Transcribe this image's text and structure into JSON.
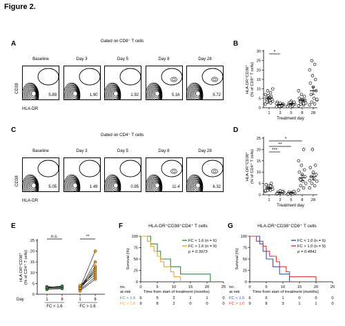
{
  "figure_title": "Figure 2.",
  "panel_letters": {
    "A": "A",
    "B": "B",
    "C": "C",
    "D": "D",
    "E": "E",
    "F": "F",
    "G": "G"
  },
  "panelA": {
    "header": "Gated on CD8⁺ T cells",
    "x_label": "HLA-DR",
    "y_label": "CD38",
    "columns": [
      "Baseline",
      "Day 3",
      "Day 5",
      "Day 8",
      "Day 28"
    ],
    "percentages": [
      "5.89",
      "1.90",
      "1.92",
      "5.16",
      "5.72"
    ]
  },
  "panelC": {
    "header": "Gated on CD4⁺ T cells",
    "x_label": "HLA-DR",
    "y_label": "CD38",
    "columns": [
      "Baseline",
      "Day 3",
      "Day 5",
      "Day 8",
      "Day 28"
    ],
    "percentages": [
      "5.05",
      "1.49",
      "0.95",
      "11.4",
      "6.32"
    ]
  },
  "chart_data": [
    {
      "panel": "B",
      "type": "scatter",
      "ylabel_line1": "HLA-DR⁺CD38⁺",
      "ylabel_line2": "(% of CD8⁺ T cells)",
      "xlabel": "Treatment day",
      "categories": [
        "1",
        "3",
        "5",
        "8",
        "28"
      ],
      "yticks": [
        0,
        5,
        10,
        15,
        20,
        25,
        30
      ],
      "ylim": [
        0,
        30
      ],
      "significance": [
        {
          "from": "1",
          "to": "3",
          "label": "*"
        }
      ],
      "points": [
        [
          2,
          2.5,
          3,
          3.5,
          4,
          4,
          4.5,
          5,
          5,
          6,
          6.5,
          7,
          8,
          9,
          10,
          5.5,
          3
        ],
        [
          0.5,
          1,
          1,
          1.5,
          1.5,
          2,
          2,
          2.5,
          3,
          1.5,
          0.8,
          2.2,
          1.2
        ],
        [
          0.8,
          1,
          1.5,
          2,
          2,
          2.5,
          3,
          3.5,
          1.2,
          1.8,
          2.8,
          0.6
        ],
        [
          1,
          1.5,
          2,
          2.5,
          3,
          3.5,
          4,
          4.5,
          5,
          6,
          7,
          9,
          2.2,
          3.2
        ],
        [
          1.5,
          2,
          3,
          4,
          5,
          7,
          9,
          11,
          13,
          15,
          17,
          20,
          23,
          25,
          4.5
        ]
      ],
      "means": [
        5,
        1.6,
        2,
        4,
        9
      ],
      "sems": [
        0.7,
        0.3,
        0.4,
        0.7,
        2
      ]
    },
    {
      "panel": "D",
      "type": "scatter",
      "ylabel_line1": "HLA-DR⁺CD38⁺",
      "ylabel_line2": "(% of CD4⁺ T cells)",
      "xlabel": "Treatment day",
      "categories": [
        "1",
        "3",
        "5",
        "8",
        "28"
      ],
      "yticks": [
        0,
        5,
        10,
        15,
        20,
        25
      ],
      "ylim": [
        0,
        25
      ],
      "significance": [
        {
          "from": "1",
          "to": "8",
          "label": "*"
        },
        {
          "from": "1",
          "to": "5",
          "label": "**"
        },
        {
          "from": "1",
          "to": "3",
          "label": "***"
        }
      ],
      "points": [
        [
          1.5,
          2,
          2,
          2.5,
          3,
          3,
          3.5,
          4,
          4.5,
          5,
          2.8,
          1.8,
          3.8
        ],
        [
          0.3,
          0.5,
          0.8,
          1,
          1,
          1.2,
          1.5,
          1.8,
          0.6,
          1.3
        ],
        [
          0.2,
          0.4,
          0.6,
          0.8,
          1,
          1.2,
          1.5,
          0.7,
          0.5
        ],
        [
          2,
          3,
          4,
          5,
          6,
          7,
          8,
          9,
          10,
          11,
          13,
          15,
          20,
          6.5
        ],
        [
          3,
          4,
          5,
          6,
          7,
          8,
          9,
          10,
          12,
          13,
          20,
          6.3
        ]
      ],
      "means": [
        3,
        1,
        0.8,
        7.5,
        8
      ],
      "sems": [
        0.4,
        0.15,
        0.15,
        1.3,
        1.4
      ]
    },
    {
      "panel": "E",
      "type": "line",
      "ylabel_line1": "HLA-DR⁺CD38⁺",
      "ylabel_line2": "(% of CD4⁺ T cells)",
      "yticks": [
        0,
        5,
        10,
        15,
        20,
        25
      ],
      "ylim": [
        0,
        25
      ],
      "day_label": "Day",
      "groups": [
        {
          "name": "FC < 1.6",
          "x": [
            "1",
            "8"
          ],
          "color": "#2e8b3e",
          "pairs": [
            [
              3,
              3.2
            ],
            [
              2.5,
              2.8
            ],
            [
              2.8,
              3.5
            ],
            [
              3.5,
              3.3
            ],
            [
              2.2,
              2.6
            ],
            [
              3.2,
              3.8
            ]
          ],
          "sig": "n.s."
        },
        {
          "name": "FC > 1.6",
          "x": [
            "1",
            "8"
          ],
          "color": "#f0a020",
          "pairs": [
            [
              3,
              20
            ],
            [
              2.5,
              15
            ],
            [
              2,
              12
            ],
            [
              3,
              11
            ],
            [
              3.5,
              9
            ],
            [
              2,
              8
            ],
            [
              1.5,
              7
            ],
            [
              4,
              10
            ],
            [
              2.8,
              13
            ]
          ],
          "sig": "**"
        }
      ]
    },
    {
      "panel": "F",
      "type": "line",
      "title": "HLA-DR⁺CD38⁺CD4⁺ T cells",
      "ylabel": "Survival (%)",
      "xlabel": "Time from start of treatment (months)",
      "yticks": [
        0,
        25,
        50,
        75,
        100
      ],
      "xticks": [
        0,
        5,
        10,
        15,
        20,
        25
      ],
      "xlim": [
        0,
        25
      ],
      "ylim": [
        0,
        100
      ],
      "legend": [
        "FC < 1.6 (n = 6)",
        "FC > 1.6 (n = 9)"
      ],
      "p_value": "p = 0.3973",
      "series": [
        {
          "name": "FC < 1.6",
          "color": "#2e8b3e",
          "steps": [
            [
              0,
              100
            ],
            [
              3,
              100
            ],
            [
              3,
              83
            ],
            [
              5,
              83
            ],
            [
              5,
              67
            ],
            [
              6,
              67
            ],
            [
              6,
              50
            ],
            [
              9,
              50
            ],
            [
              9,
              33
            ],
            [
              12,
              33
            ],
            [
              12,
              17
            ],
            [
              21,
              17
            ],
            [
              21,
              0
            ]
          ]
        },
        {
          "name": "FC > 1.6",
          "color": "#f0a020",
          "steps": [
            [
              0,
              100
            ],
            [
              2,
              100
            ],
            [
              2,
              89
            ],
            [
              3,
              89
            ],
            [
              3,
              78
            ],
            [
              4,
              78
            ],
            [
              4,
              67
            ],
            [
              5,
              67
            ],
            [
              5,
              56
            ],
            [
              6,
              56
            ],
            [
              6,
              44
            ],
            [
              7,
              44
            ],
            [
              7,
              33
            ],
            [
              9,
              33
            ],
            [
              9,
              22
            ],
            [
              10,
              22
            ],
            [
              10,
              11
            ],
            [
              12,
              11
            ],
            [
              12,
              0
            ]
          ]
        }
      ],
      "at_risk": {
        "header": [
          "no.",
          "at risk"
        ],
        "rows": [
          {
            "label": "FC < 1.6",
            "color": "#2e8b3e",
            "values": [
              "6",
              "5",
              "2",
              "1",
              "1",
              "0"
            ]
          },
          {
            "label": "FC > 1.6",
            "color": "#f0a020",
            "values": [
              "9",
              "8",
              "2",
              "0",
              "0",
              "0"
            ]
          }
        ]
      }
    },
    {
      "panel": "G",
      "type": "line",
      "title": "HLA-DR⁺CD38⁺CD8⁺ T cells",
      "ylabel": "Survival (%)",
      "xlabel": "Time from start of treatment (months)",
      "yticks": [
        0,
        25,
        50,
        75,
        100
      ],
      "xticks": [
        0,
        5,
        10,
        15,
        20,
        25
      ],
      "xlim": [
        0,
        25
      ],
      "ylim": [
        0,
        100
      ],
      "legend": [
        "FC < 1.0 (n = 6)",
        "FC > 1.0 (n = 9)"
      ],
      "p_value": "p = 0.4841",
      "series": [
        {
          "name": "FC < 1.0",
          "color": "#3050c0",
          "steps": [
            [
              0,
              100
            ],
            [
              3,
              100
            ],
            [
              3,
              83
            ],
            [
              4,
              83
            ],
            [
              4,
              67
            ],
            [
              5,
              67
            ],
            [
              5,
              50
            ],
            [
              7,
              50
            ],
            [
              7,
              33
            ],
            [
              9,
              33
            ],
            [
              9,
              17
            ],
            [
              12,
              17
            ],
            [
              12,
              0
            ]
          ]
        },
        {
          "name": "FC > 1.0",
          "color": "#e03030",
          "steps": [
            [
              0,
              100
            ],
            [
              2,
              100
            ],
            [
              2,
              89
            ],
            [
              4,
              89
            ],
            [
              4,
              78
            ],
            [
              5,
              78
            ],
            [
              5,
              67
            ],
            [
              6,
              67
            ],
            [
              6,
              56
            ],
            [
              8,
              56
            ],
            [
              8,
              44
            ],
            [
              9,
              44
            ],
            [
              9,
              33
            ],
            [
              11,
              33
            ],
            [
              11,
              22
            ],
            [
              12,
              22
            ],
            [
              12,
              11
            ],
            [
              20,
              11
            ],
            [
              20,
              0
            ]
          ]
        }
      ],
      "at_risk": {
        "header": [
          "no.",
          "at risk"
        ],
        "rows": [
          {
            "label": "FC < 1.0",
            "color": "#3050c0",
            "values": [
              "6",
              "6",
              "1",
              "0",
              "0",
              "0"
            ]
          },
          {
            "label": "FC > 1.0",
            "color": "#e03030",
            "values": [
              "9",
              "8",
              "3",
              "1",
              "1",
              "0"
            ]
          }
        ]
      }
    }
  ]
}
